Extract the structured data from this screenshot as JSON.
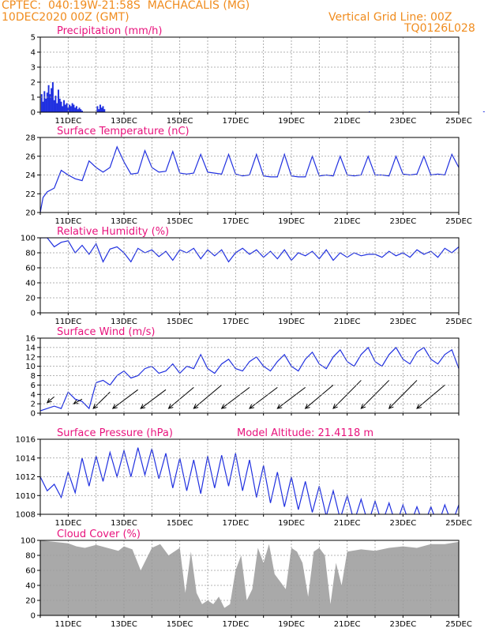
{
  "header": {
    "line1": "CPTEC:  040:19W-21:58S  MACHACALIS (MG)",
    "line2": "10DEC2020 00Z (GMT)",
    "right1": "Vertical Grid Line: 00Z",
    "right2": "TQ0126L028"
  },
  "colors": {
    "header": "#f08c1e",
    "title": "#e8127c",
    "line": "#2030e0",
    "cloud": "#a9a9a9",
    "grid": "#9a9a9a"
  },
  "x_tick_labels": [
    "11DEC",
    "13DEC",
    "15DEC",
    "17DEC",
    "19DEC",
    "21DEC",
    "23DEC",
    "25DEC"
  ],
  "chart_data": [
    {
      "id": "precip",
      "type": "bar",
      "title": "Precipitation (mm/h)",
      "ylim": [
        0,
        5
      ],
      "yticks": [
        0,
        1,
        2,
        3,
        4,
        5
      ],
      "x_days": [
        0.05,
        0.1,
        0.15,
        0.2,
        0.25,
        0.3,
        0.35,
        0.4,
        0.45,
        0.5,
        0.55,
        0.6,
        0.65,
        0.7,
        0.75,
        0.8,
        0.85,
        0.9,
        0.95,
        1.0,
        1.05,
        1.1,
        1.15,
        1.2,
        1.25,
        1.3,
        1.35,
        1.4,
        1.45,
        1.5,
        2.05,
        2.1,
        2.15,
        2.2,
        2.25,
        2.3,
        11.8,
        15.9
      ],
      "values": [
        1.2,
        0.7,
        1.4,
        0.9,
        1.3,
        1.8,
        1.2,
        1.6,
        2.0,
        0.8,
        1.1,
        0.6,
        1.5,
        0.9,
        0.7,
        0.4,
        0.8,
        0.5,
        0.6,
        0.3,
        0.5,
        0.4,
        0.6,
        0.5,
        0.3,
        0.4,
        0.2,
        0.3,
        0.2,
        0.1,
        0.4,
        0.2,
        0.5,
        0.3,
        0.4,
        0.2,
        0.05,
        0.05
      ]
    },
    {
      "id": "temp",
      "type": "line",
      "title": "Surface Temperature (nC)",
      "ylim": [
        20,
        28
      ],
      "yticks": [
        20,
        22,
        24,
        26,
        28
      ],
      "x_days": [
        0,
        0.1,
        0.25,
        0.5,
        0.75,
        1.0,
        1.25,
        1.5,
        1.75,
        2.0,
        2.25,
        2.5,
        2.75,
        3.0,
        3.25,
        3.5,
        3.75,
        4.0,
        4.25,
        4.5,
        4.75,
        5.0,
        5.25,
        5.5,
        5.75,
        6.0,
        6.25,
        6.5,
        6.75,
        7.0,
        7.25,
        7.5,
        7.75,
        8.0,
        8.25,
        8.5,
        8.75,
        9.0,
        9.25,
        9.5,
        9.75,
        10.0,
        10.25,
        10.5,
        10.75,
        11.0,
        11.25,
        11.5,
        11.75,
        12.0,
        12.25,
        12.5,
        12.75,
        13.0,
        13.25,
        13.5,
        13.75,
        14.0,
        14.25,
        14.5,
        14.75,
        15.0
      ],
      "values": [
        20.0,
        21.6,
        22.2,
        22.6,
        24.5,
        24.0,
        23.6,
        23.4,
        25.5,
        24.8,
        24.3,
        24.8,
        27.0,
        25.4,
        24.1,
        24.2,
        26.6,
        24.8,
        24.3,
        24.4,
        26.5,
        24.2,
        24.1,
        24.2,
        26.2,
        24.3,
        24.2,
        24.1,
        26.2,
        24.1,
        23.9,
        24.0,
        26.2,
        23.9,
        23.8,
        23.8,
        26.2,
        23.9,
        23.8,
        23.8,
        26.0,
        23.9,
        24.0,
        23.9,
        26.0,
        24.0,
        23.9,
        24.0,
        26.0,
        24.0,
        24.0,
        23.9,
        26.0,
        24.1,
        24.0,
        24.1,
        26.0,
        24.0,
        24.1,
        24.0,
        26.2,
        24.8
      ]
    },
    {
      "id": "rh",
      "type": "line",
      "title": "Relative Humidity (%)",
      "ylim": [
        0,
        100
      ],
      "yticks": [
        0,
        20,
        40,
        60,
        80,
        100
      ],
      "x_days": [
        0,
        0.25,
        0.5,
        0.75,
        1.0,
        1.25,
        1.5,
        1.75,
        2.0,
        2.25,
        2.5,
        2.75,
        3.0,
        3.25,
        3.5,
        3.75,
        4.0,
        4.25,
        4.5,
        4.75,
        5.0,
        5.25,
        5.5,
        5.75,
        6.0,
        6.25,
        6.5,
        6.75,
        7.0,
        7.25,
        7.5,
        7.75,
        8.0,
        8.25,
        8.5,
        8.75,
        9.0,
        9.25,
        9.5,
        9.75,
        10.0,
        10.25,
        10.5,
        10.75,
        11.0,
        11.25,
        11.5,
        11.75,
        12.0,
        12.25,
        12.5,
        12.75,
        13.0,
        13.25,
        13.5,
        13.75,
        14.0,
        14.25,
        14.5,
        14.75,
        15.0
      ],
      "values": [
        100,
        100,
        88,
        94,
        96,
        80,
        90,
        78,
        92,
        68,
        85,
        88,
        80,
        68,
        86,
        80,
        84,
        75,
        82,
        70,
        84,
        80,
        86,
        72,
        84,
        76,
        84,
        68,
        80,
        86,
        78,
        84,
        74,
        82,
        72,
        84,
        70,
        80,
        76,
        82,
        72,
        84,
        70,
        80,
        74,
        80,
        76,
        78,
        78,
        74,
        82,
        76,
        80,
        74,
        84,
        78,
        82,
        74,
        86,
        80,
        88
      ]
    },
    {
      "id": "wind",
      "type": "line",
      "title": "Surface Wind (m/s)",
      "ylim": [
        0,
        16
      ],
      "yticks": [
        0,
        2,
        4,
        6,
        8,
        10,
        12,
        14,
        16
      ],
      "x_days": [
        0,
        0.25,
        0.5,
        0.75,
        1.0,
        1.25,
        1.5,
        1.75,
        2.0,
        2.25,
        2.5,
        2.75,
        3.0,
        3.25,
        3.5,
        3.75,
        4.0,
        4.25,
        4.5,
        4.75,
        5.0,
        5.25,
        5.5,
        5.75,
        6.0,
        6.25,
        6.5,
        6.75,
        7.0,
        7.25,
        7.5,
        7.75,
        8.0,
        8.25,
        8.5,
        8.75,
        9.0,
        9.25,
        9.5,
        9.75,
        10.0,
        10.25,
        10.5,
        10.75,
        11.0,
        11.25,
        11.5,
        11.75,
        12.0,
        12.25,
        12.5,
        12.75,
        13.0,
        13.25,
        13.5,
        13.75,
        14.0,
        14.25,
        14.5,
        14.75,
        15.0
      ],
      "values": [
        0.5,
        1.0,
        1.5,
        1.0,
        4.5,
        3.0,
        2.5,
        1.0,
        6.5,
        7.0,
        6.0,
        8.0,
        9.0,
        7.5,
        8.0,
        9.5,
        10.0,
        8.5,
        9.0,
        10.5,
        8.5,
        10.0,
        9.5,
        12.5,
        9.5,
        8.5,
        10.5,
        11.5,
        9.5,
        9.0,
        11.0,
        12.0,
        10.0,
        9.0,
        11.0,
        12.5,
        10.0,
        9.0,
        11.5,
        13.0,
        10.5,
        9.5,
        12.0,
        13.5,
        11.0,
        10.0,
        12.5,
        14.0,
        11.0,
        10.0,
        12.5,
        14.0,
        11.5,
        10.5,
        13.0,
        14.0,
        11.5,
        10.5,
        12.5,
        13.5,
        9.5
      ],
      "vectors": [
        {
          "x_day": 0.5,
          "dx": 0.25,
          "dy": 2.5
        },
        {
          "x_day": 1.5,
          "dx": 0.3,
          "dy": 2.0
        },
        {
          "x_day": 2.5,
          "dx": 0.6,
          "dy": 3.5
        },
        {
          "x_day": 3.5,
          "dx": 0.9,
          "dy": 4.0
        },
        {
          "x_day": 4.5,
          "dx": 0.9,
          "dy": 4.0
        },
        {
          "x_day": 5.5,
          "dx": 0.9,
          "dy": 4.5
        },
        {
          "x_day": 6.5,
          "dx": 1.0,
          "dy": 5.0
        },
        {
          "x_day": 7.5,
          "dx": 1.0,
          "dy": 4.5
        },
        {
          "x_day": 8.5,
          "dx": 1.0,
          "dy": 4.5
        },
        {
          "x_day": 9.5,
          "dx": 1.0,
          "dy": 4.5
        },
        {
          "x_day": 10.5,
          "dx": 1.0,
          "dy": 5.0
        },
        {
          "x_day": 11.5,
          "dx": 1.0,
          "dy": 6.0
        },
        {
          "x_day": 12.5,
          "dx": 1.0,
          "dy": 6.0
        },
        {
          "x_day": 13.5,
          "dx": 1.0,
          "dy": 6.0
        },
        {
          "x_day": 14.5,
          "dx": 1.0,
          "dy": 5.0
        }
      ]
    },
    {
      "id": "pres",
      "type": "line",
      "title": "Surface Pressure (hPa)",
      "annotation": "Model Altitude: 21.4118  m",
      "ylim": [
        1008,
        1016
      ],
      "yticks": [
        1008,
        1010,
        1012,
        1014,
        1016
      ],
      "x_days": [
        0,
        0.25,
        0.5,
        0.75,
        1.0,
        1.25,
        1.5,
        1.75,
        2.0,
        2.25,
        2.5,
        2.75,
        3.0,
        3.25,
        3.5,
        3.75,
        4.0,
        4.25,
        4.5,
        4.75,
        5.0,
        5.25,
        5.5,
        5.75,
        6.0,
        6.25,
        6.5,
        6.75,
        7.0,
        7.25,
        7.5,
        7.75,
        8.0,
        8.25,
        8.5,
        8.75,
        9.0,
        9.25,
        9.5,
        9.75,
        10.0,
        10.25,
        10.5,
        10.75,
        11.0,
        11.25,
        11.5,
        11.75,
        12.0,
        12.25,
        12.5,
        12.75,
        13.0,
        13.25,
        13.5,
        13.75,
        14.0,
        14.25,
        14.5,
        14.75,
        15.0
      ],
      "values": [
        1012.0,
        1010.5,
        1011.2,
        1009.8,
        1012.5,
        1010.3,
        1014.0,
        1011.0,
        1014.2,
        1011.5,
        1014.6,
        1012.0,
        1014.8,
        1012.0,
        1015.1,
        1012.2,
        1015.0,
        1011.8,
        1014.5,
        1010.8,
        1014.0,
        1010.5,
        1013.8,
        1010.2,
        1014.2,
        1010.8,
        1014.3,
        1011.0,
        1014.5,
        1010.5,
        1013.8,
        1009.8,
        1013.2,
        1009.2,
        1012.5,
        1008.8,
        1012.0,
        1008.5,
        1011.5,
        1008.2,
        1011.0,
        1007.8,
        1010.5,
        1007.5,
        1010.0,
        1007.2,
        1009.6,
        1007.0,
        1009.4,
        1007.0,
        1009.2,
        1006.8,
        1009.0,
        1006.8,
        1008.8,
        1006.8,
        1008.8,
        1006.8,
        1009.0,
        1007.0,
        1009.0
      ]
    },
    {
      "id": "cloud",
      "type": "area",
      "title": "Cloud Cover (%)",
      "ylim": [
        0,
        100
      ],
      "yticks": [
        0,
        20,
        40,
        60,
        80,
        100
      ],
      "x_days": [
        0,
        0.5,
        1.0,
        1.3,
        1.6,
        2.0,
        2.4,
        2.8,
        3.0,
        3.3,
        3.6,
        4.0,
        4.3,
        4.6,
        5.0,
        5.2,
        5.4,
        5.6,
        5.8,
        6.0,
        6.2,
        6.4,
        6.6,
        6.8,
        7.0,
        7.2,
        7.4,
        7.6,
        7.8,
        8.0,
        8.2,
        8.4,
        8.6,
        8.8,
        9.0,
        9.2,
        9.4,
        9.6,
        9.8,
        10.0,
        10.2,
        10.4,
        10.6,
        10.8,
        11.0,
        11.5,
        12.0,
        12.5,
        13.0,
        13.5,
        14.0,
        14.5,
        15.0
      ],
      "values": [
        100,
        98,
        96,
        92,
        90,
        94,
        90,
        86,
        92,
        88,
        60,
        90,
        95,
        80,
        90,
        30,
        85,
        30,
        15,
        20,
        15,
        25,
        10,
        15,
        60,
        80,
        20,
        35,
        90,
        70,
        95,
        55,
        45,
        35,
        90,
        85,
        70,
        25,
        85,
        90,
        80,
        15,
        70,
        40,
        85,
        88,
        86,
        90,
        92,
        90,
        95,
        95,
        98
      ]
    }
  ]
}
